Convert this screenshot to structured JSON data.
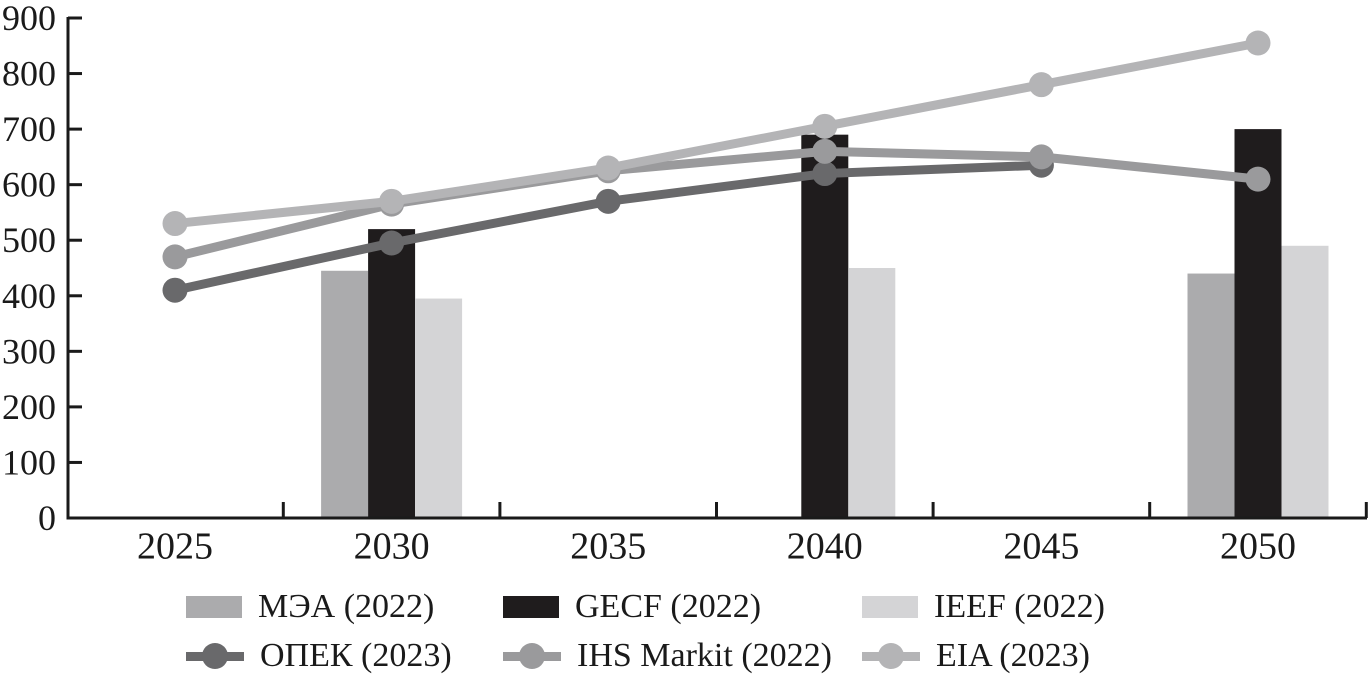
{
  "chart_data": {
    "type": "bar+line",
    "title": "",
    "x_labels": [
      "2025",
      "2030",
      "2035",
      "2040",
      "2045",
      "2050"
    ],
    "yticks": [
      0,
      100,
      200,
      300,
      400,
      500,
      600,
      700,
      800,
      900
    ],
    "ylim": [
      0,
      900
    ],
    "grid": false,
    "legend_position": "bottom",
    "axis_color": "#1a1a1a",
    "x_minor_ticks_between_years": true,
    "bar_series": [
      {
        "name": "МЭА (2022)",
        "color": "#ababad",
        "values": {
          "2030": 445,
          "2040": null,
          "2050": 440
        }
      },
      {
        "name": "GECF (2022)",
        "color": "#1f1c1d",
        "values": {
          "2030": 520,
          "2040": 690,
          "2050": 700
        }
      },
      {
        "name": "IEEF (2022)",
        "color": "#d4d4d6",
        "values": {
          "2030": 395,
          "2040": 450,
          "2050": 490
        }
      }
    ],
    "line_series": [
      {
        "name": "ОПЕК (2023)",
        "color": "#69696b",
        "points": [
          [
            2025,
            410
          ],
          [
            2030,
            495
          ],
          [
            2035,
            570
          ],
          [
            2040,
            620
          ],
          [
            2045,
            635
          ]
        ]
      },
      {
        "name": "IHS Markit (2022)",
        "color": "#9a9a9c",
        "points": [
          [
            2025,
            470
          ],
          [
            2030,
            565
          ],
          [
            2035,
            625
          ],
          [
            2040,
            660
          ],
          [
            2045,
            650
          ],
          [
            2050,
            610
          ]
        ]
      },
      {
        "name": "EIA (2023)",
        "color": "#b4b4b6",
        "points": [
          [
            2025,
            530
          ],
          [
            2030,
            570
          ],
          [
            2035,
            630
          ],
          [
            2040,
            705
          ],
          [
            2045,
            780
          ],
          [
            2050,
            855
          ]
        ]
      }
    ],
    "legend_items": [
      {
        "label": "МЭА (2022)",
        "kind": "bar",
        "color": "#ababad"
      },
      {
        "label": "GECF (2022)",
        "kind": "bar",
        "color": "#1f1c1d"
      },
      {
        "label": "IEEF (2022)",
        "kind": "bar",
        "color": "#d4d4d6"
      },
      {
        "label": "ОПЕК (2023)",
        "kind": "line",
        "color": "#69696b"
      },
      {
        "label": "IHS Markit (2022)",
        "kind": "line",
        "color": "#9a9a9c"
      },
      {
        "label": "EIA (2023)",
        "kind": "line",
        "color": "#b4b4b6"
      }
    ]
  }
}
